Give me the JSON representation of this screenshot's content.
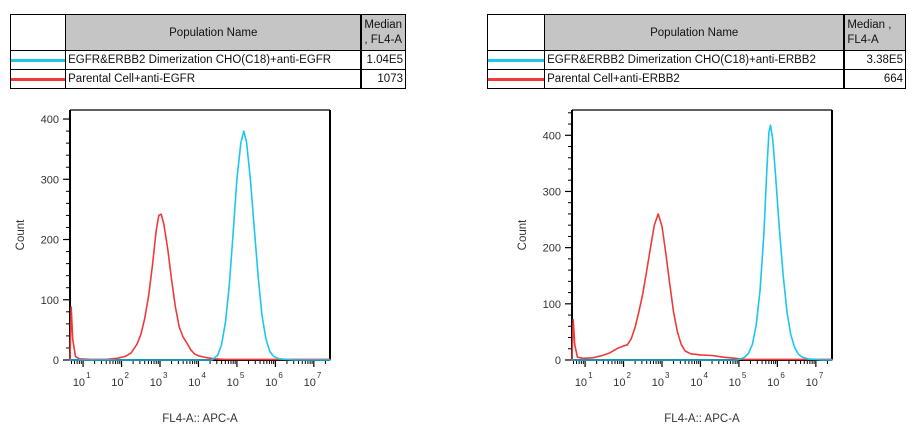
{
  "panels": [
    {
      "table": {
        "name_header": "Population Name",
        "median_header_line1": "Median",
        "median_header_line2": ", FL4-A",
        "rows": [
          {
            "name": "EGFR&ERBB2 Dimerization CHO(C18)+anti-EGFR",
            "median": "1.04E5",
            "color": "#1cc6ef"
          },
          {
            "name": "Parental Cell+anti-EGFR",
            "median": "1073",
            "color": "#ef3a3a"
          }
        ]
      },
      "chart_data": {
        "type": "line",
        "xlabel": "FL4-A:: APC-A",
        "ylabel": "Count",
        "x_scale": "log",
        "xlim_log": [
          0.66,
          7.42
        ],
        "x_tick_exponents": [
          1,
          2,
          3,
          4,
          5,
          6,
          7
        ],
        "ylim": [
          0,
          415
        ],
        "y_ticks": [
          0,
          100,
          200,
          300,
          400
        ],
        "y_minor_step": 20,
        "series": [
          {
            "name": "Parental Cell+anti-EGFR",
            "color": "#ef3a3a",
            "median": "1073",
            "points": [
              [
                0.66,
                0
              ],
              [
                0.69,
                88
              ],
              [
                0.73,
                35
              ],
              [
                0.8,
                6
              ],
              [
                0.9,
                2
              ],
              [
                1.2,
                1
              ],
              [
                1.6,
                1
              ],
              [
                1.9,
                3
              ],
              [
                2.1,
                6
              ],
              [
                2.25,
                12
              ],
              [
                2.4,
                26
              ],
              [
                2.5,
                42
              ],
              [
                2.6,
                68
              ],
              [
                2.7,
                105
              ],
              [
                2.8,
                155
              ],
              [
                2.9,
                215
              ],
              [
                2.97,
                240
              ],
              [
                3.03,
                242
              ],
              [
                3.1,
                226
              ],
              [
                3.2,
                185
              ],
              [
                3.3,
                134
              ],
              [
                3.4,
                88
              ],
              [
                3.5,
                55
              ],
              [
                3.6,
                38
              ],
              [
                3.68,
                30
              ],
              [
                3.8,
                17
              ],
              [
                3.9,
                10
              ],
              [
                4.0,
                7
              ],
              [
                4.2,
                4
              ],
              [
                4.4,
                2
              ],
              [
                4.7,
                1
              ],
              [
                5.2,
                1
              ],
              [
                6.0,
                1
              ],
              [
                6.6,
                1
              ],
              [
                7.42,
                1
              ]
            ]
          },
          {
            "name": "EGFR&ERBB2 Dimerization CHO(C18)+anti-EGFR",
            "color": "#1cc6ef",
            "median": "1.04E5",
            "points": [
              [
                0.66,
                0
              ],
              [
                4.35,
                0
              ],
              [
                4.5,
                8
              ],
              [
                4.6,
                25
              ],
              [
                4.7,
                62
              ],
              [
                4.8,
                122
              ],
              [
                4.9,
                210
              ],
              [
                5.0,
                300
              ],
              [
                5.1,
                360
              ],
              [
                5.18,
                380
              ],
              [
                5.25,
                362
              ],
              [
                5.35,
                300
              ],
              [
                5.45,
                220
              ],
              [
                5.55,
                140
              ],
              [
                5.65,
                75
              ],
              [
                5.75,
                36
              ],
              [
                5.85,
                15
              ],
              [
                5.95,
                6
              ],
              [
                6.1,
                2
              ],
              [
                6.3,
                1
              ],
              [
                6.5,
                0
              ],
              [
                7.42,
                0
              ]
            ]
          }
        ]
      }
    },
    {
      "table": {
        "name_header": "Population Name",
        "median_header_line1": "Median ,",
        "median_header_line2": "FL4-A",
        "rows": [
          {
            "name": "EGFR&ERBB2 Dimerization CHO(C18)+anti-ERBB2",
            "median": "3.38E5",
            "color": "#1cc6ef"
          },
          {
            "name": "Parental Cell+anti-ERBB2",
            "median": "664",
            "color": "#ef3a3a"
          }
        ]
      },
      "chart_data": {
        "type": "line",
        "xlabel": "FL4-A:: APC-A",
        "ylabel": "Count",
        "x_scale": "log",
        "xlim_log": [
          0.66,
          7.42
        ],
        "x_tick_exponents": [
          1,
          2,
          3,
          4,
          5,
          6,
          7
        ],
        "ylim": [
          0,
          445
        ],
        "y_ticks": [
          0,
          100,
          200,
          300,
          400
        ],
        "y_minor_step": 20,
        "series": [
          {
            "name": "Parental Cell+anti-ERBB2",
            "color": "#ef3a3a",
            "median": "664",
            "points": [
              [
                0.66,
                0
              ],
              [
                0.69,
                72
              ],
              [
                0.73,
                28
              ],
              [
                0.8,
                5
              ],
              [
                0.95,
                3
              ],
              [
                1.2,
                4
              ],
              [
                1.45,
                8
              ],
              [
                1.65,
                13
              ],
              [
                1.85,
                21
              ],
              [
                2.0,
                25
              ],
              [
                2.1,
                27
              ],
              [
                2.2,
                38
              ],
              [
                2.3,
                58
              ],
              [
                2.4,
                86
              ],
              [
                2.5,
                118
              ],
              [
                2.6,
                158
              ],
              [
                2.7,
                200
              ],
              [
                2.8,
                240
              ],
              [
                2.9,
                260
              ],
              [
                3.0,
                238
              ],
              [
                3.1,
                190
              ],
              [
                3.2,
                136
              ],
              [
                3.3,
                86
              ],
              [
                3.4,
                50
              ],
              [
                3.5,
                28
              ],
              [
                3.6,
                16
              ],
              [
                3.75,
                11
              ],
              [
                4.0,
                9
              ],
              [
                4.3,
                8
              ],
              [
                4.6,
                5
              ],
              [
                4.9,
                3
              ],
              [
                5.15,
                1
              ],
              [
                5.8,
                1
              ],
              [
                6.3,
                1
              ],
              [
                7.42,
                1
              ]
            ]
          },
          {
            "name": "EGFR&ERBB2 Dimerization CHO(C18)+anti-ERBB2",
            "color": "#1cc6ef",
            "median": "3.38E5",
            "points": [
              [
                0.66,
                0
              ],
              [
                4.95,
                0
              ],
              [
                5.05,
                2
              ],
              [
                5.15,
                5
              ],
              [
                5.25,
                12
              ],
              [
                5.35,
                28
              ],
              [
                5.45,
                62
              ],
              [
                5.55,
                125
              ],
              [
                5.65,
                225
              ],
              [
                5.72,
                330
              ],
              [
                5.78,
                405
              ],
              [
                5.82,
                418
              ],
              [
                5.88,
                392
              ],
              [
                5.95,
                330
              ],
              [
                6.05,
                235
              ],
              [
                6.15,
                150
              ],
              [
                6.25,
                85
              ],
              [
                6.35,
                45
              ],
              [
                6.45,
                22
              ],
              [
                6.55,
                10
              ],
              [
                6.65,
                5
              ],
              [
                6.8,
                2
              ],
              [
                7.0,
                1
              ],
              [
                7.15,
                0
              ],
              [
                7.42,
                0
              ]
            ]
          }
        ]
      }
    }
  ]
}
